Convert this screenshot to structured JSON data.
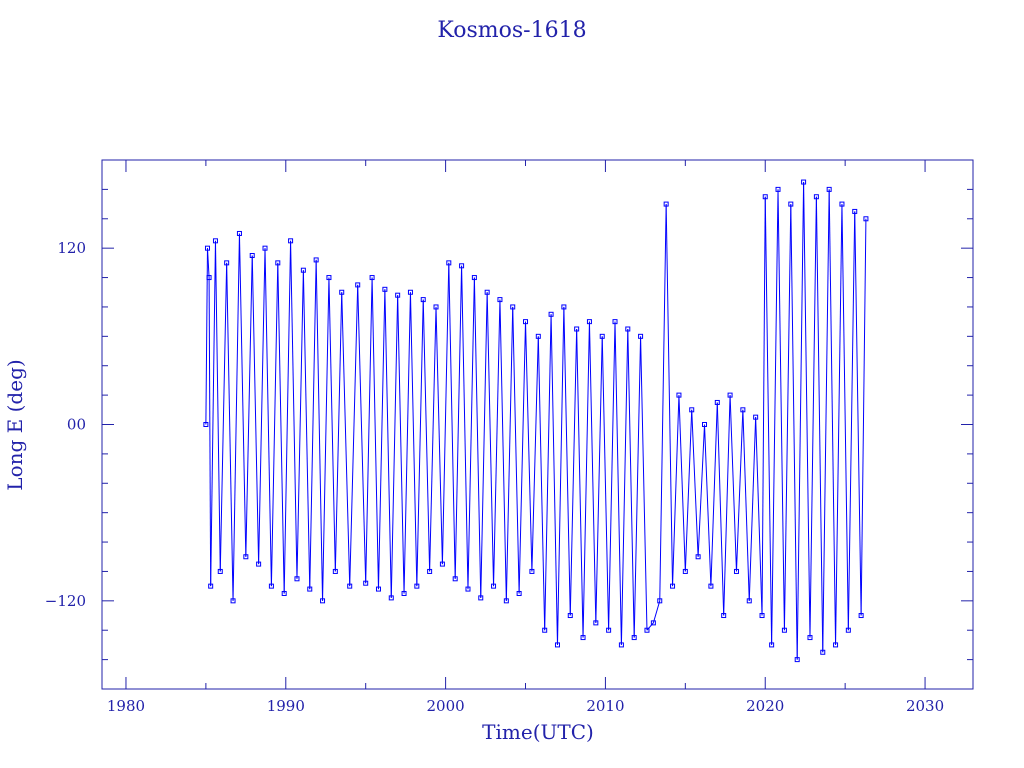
{
  "chart_data": {
    "type": "scatter",
    "title": "Kosmos-1618",
    "xlabel": "Time(UTC)",
    "ylabel": "Long E (deg)",
    "xlim": [
      1978.5,
      2033
    ],
    "ylim": [
      -180,
      180
    ],
    "xticks": [
      1980,
      1990,
      2000,
      2010,
      2020,
      2030
    ],
    "xtick_labels": [
      "1980",
      "1990",
      "2000",
      "2010",
      "2020",
      "2030"
    ],
    "yticks": [
      -120,
      0,
      120
    ],
    "ytick_labels": [
      "−120",
      "00",
      "120"
    ],
    "grid": false,
    "colors": {
      "data": "#0000ff",
      "frame": "#2222aa",
      "text": "#2222aa"
    },
    "series": [
      {
        "values": [
          [
            1985.0,
            0
          ],
          [
            1985.1,
            120
          ],
          [
            1985.2,
            100
          ],
          [
            1985.3,
            -110
          ],
          [
            1985.6,
            125
          ],
          [
            1985.9,
            -100
          ],
          [
            1986.3,
            110
          ],
          [
            1986.7,
            -120
          ],
          [
            1987.1,
            130
          ],
          [
            1987.5,
            -90
          ],
          [
            1987.9,
            115
          ],
          [
            1988.3,
            -95
          ],
          [
            1988.7,
            120
          ],
          [
            1989.1,
            -110
          ],
          [
            1989.5,
            110
          ],
          [
            1989.9,
            -115
          ],
          [
            1990.3,
            125
          ],
          [
            1990.7,
            -105
          ],
          [
            1991.1,
            105
          ],
          [
            1991.5,
            -112
          ],
          [
            1991.9,
            112
          ],
          [
            1992.3,
            -120
          ],
          [
            1992.7,
            100
          ],
          [
            1993.1,
            -100
          ],
          [
            1993.5,
            90
          ],
          [
            1994.0,
            -110
          ],
          [
            1994.5,
            95
          ],
          [
            1995.0,
            -108
          ],
          [
            1995.4,
            100
          ],
          [
            1995.8,
            -112
          ],
          [
            1996.2,
            92
          ],
          [
            1996.6,
            -118
          ],
          [
            1997.0,
            88
          ],
          [
            1997.4,
            -115
          ],
          [
            1997.8,
            90
          ],
          [
            1998.2,
            -110
          ],
          [
            1998.6,
            85
          ],
          [
            1999.0,
            -100
          ],
          [
            1999.4,
            80
          ],
          [
            1999.8,
            -95
          ],
          [
            2000.2,
            110
          ],
          [
            2000.6,
            -105
          ],
          [
            2001.0,
            108
          ],
          [
            2001.4,
            -112
          ],
          [
            2001.8,
            100
          ],
          [
            2002.2,
            -118
          ],
          [
            2002.6,
            90
          ],
          [
            2003.0,
            -110
          ],
          [
            2003.4,
            85
          ],
          [
            2003.8,
            -120
          ],
          [
            2004.2,
            80
          ],
          [
            2004.6,
            -115
          ],
          [
            2005.0,
            70
          ],
          [
            2005.4,
            -100
          ],
          [
            2005.8,
            60
          ],
          [
            2006.2,
            -140
          ],
          [
            2006.6,
            75
          ],
          [
            2007.0,
            -150
          ],
          [
            2007.4,
            80
          ],
          [
            2007.8,
            -130
          ],
          [
            2008.2,
            65
          ],
          [
            2008.6,
            -145
          ],
          [
            2009.0,
            70
          ],
          [
            2009.4,
            -135
          ],
          [
            2009.8,
            60
          ],
          [
            2010.2,
            -140
          ],
          [
            2010.6,
            70
          ],
          [
            2011.0,
            -150
          ],
          [
            2011.4,
            65
          ],
          [
            2011.8,
            -145
          ],
          [
            2012.2,
            60
          ],
          [
            2012.6,
            -140
          ],
          [
            2013.0,
            -135
          ],
          [
            2013.4,
            -120
          ],
          [
            2013.8,
            150
          ],
          [
            2014.2,
            -110
          ],
          [
            2014.6,
            20
          ],
          [
            2015.0,
            -100
          ],
          [
            2015.4,
            10
          ],
          [
            2015.8,
            -90
          ],
          [
            2016.2,
            0
          ],
          [
            2016.6,
            -110
          ],
          [
            2017.0,
            15
          ],
          [
            2017.4,
            -130
          ],
          [
            2017.8,
            20
          ],
          [
            2018.2,
            -100
          ],
          [
            2018.6,
            10
          ],
          [
            2019.0,
            -120
          ],
          [
            2019.4,
            5
          ],
          [
            2019.8,
            -130
          ],
          [
            2020.0,
            155
          ],
          [
            2020.4,
            -150
          ],
          [
            2020.8,
            160
          ],
          [
            2021.2,
            -140
          ],
          [
            2021.6,
            150
          ],
          [
            2022.0,
            -160
          ],
          [
            2022.4,
            165
          ],
          [
            2022.8,
            -145
          ],
          [
            2023.2,
            155
          ],
          [
            2023.6,
            -155
          ],
          [
            2024.0,
            160
          ],
          [
            2024.4,
            -150
          ],
          [
            2024.8,
            150
          ],
          [
            2025.2,
            -140
          ],
          [
            2025.6,
            145
          ],
          [
            2026.0,
            -130
          ],
          [
            2026.3,
            140
          ]
        ]
      }
    ]
  }
}
